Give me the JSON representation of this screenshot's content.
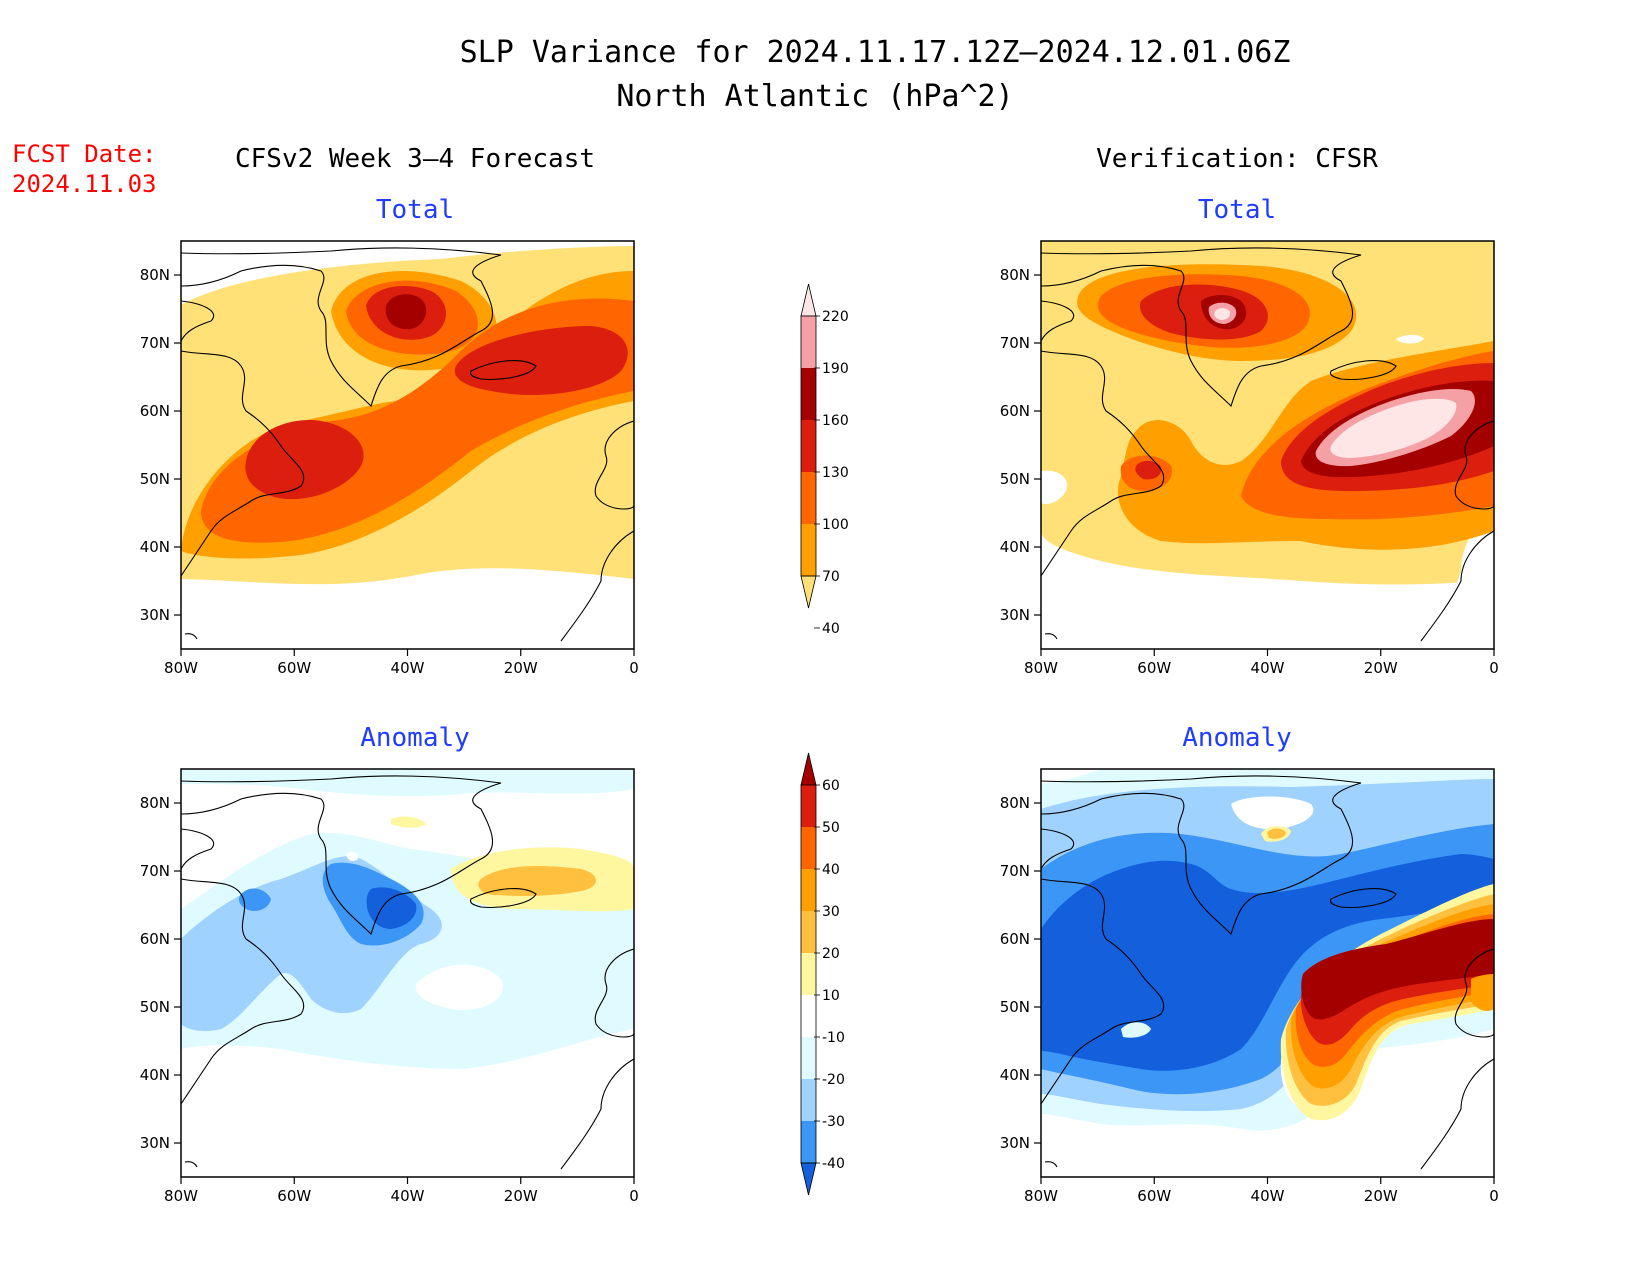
{
  "title": "SLP Variance for 2024.11.17.12Z–2024.12.01.06Z",
  "subtitle": "North Atlantic (hPa^2)",
  "forecast_date_label": "FCST Date:",
  "forecast_date_value": "2024.11.03",
  "columns": [
    {
      "header": "CFSv2 Week 3–4 Forecast"
    },
    {
      "header": "Verification: CFSR"
    }
  ],
  "panels": [
    {
      "title": "Total"
    },
    {
      "title": "Total"
    },
    {
      "title": "Anomaly"
    },
    {
      "title": "Anomaly"
    }
  ],
  "axes": {
    "lon_ticks": [
      "80W",
      "60W",
      "40W",
      "20W",
      "0"
    ],
    "lat_ticks": [
      "80N",
      "70N",
      "60N",
      "50N",
      "40N",
      "30N"
    ],
    "lon_range": [
      -80,
      0
    ],
    "lat_range": [
      25,
      85
    ]
  },
  "colorbars": {
    "total": {
      "levels": [
        "220",
        "190",
        "160",
        "130",
        "100",
        "70",
        "40"
      ],
      "colors": [
        "#ffe6e6",
        "#f5a0a5",
        "#a50000",
        "#dc1e0f",
        "#ff6600",
        "#ffa000",
        "#ffe177"
      ]
    },
    "anomaly": {
      "levels": [
        "60",
        "50",
        "40",
        "30",
        "20",
        "10",
        "-10",
        "-20",
        "-30",
        "-40"
      ],
      "colors": [
        "#a50000",
        "#dc1e0f",
        "#ff6600",
        "#ffa000",
        "#ffc040",
        "#fff7a0",
        "#ffffff",
        "#e0fbff",
        "#9fd2ff",
        "#3c96f5",
        "#1460dc"
      ]
    }
  },
  "chart_data": [
    {
      "panel": "CFSv2 Week 3–4 Forecast – Total",
      "type": "heatmap",
      "features": [
        {
          "label": "max near Greenland",
          "lon": -40,
          "lat": 72,
          "value": 160
        },
        {
          "label": "max near Iceland",
          "lon": -10,
          "lat": 67,
          "value": 130
        },
        {
          "label": "max near Newfoundland",
          "lon": -55,
          "lat": 50,
          "value": 130
        }
      ]
    },
    {
      "panel": "Verification: CFSR – Total",
      "type": "heatmap",
      "features": [
        {
          "label": "max near Greenland",
          "lon": -43,
          "lat": 73,
          "value": 190
        },
        {
          "label": "max west of British Isles",
          "lon": -20,
          "lat": 56,
          "value": 220
        },
        {
          "label": "local max near Newfoundland",
          "lon": -60,
          "lat": 48,
          "value": 130
        }
      ]
    },
    {
      "panel": "CFSv2 Week 3–4 Forecast – Anomaly",
      "type": "heatmap",
      "features": [
        {
          "label": "negative near Labrador Sea",
          "lon": -40,
          "lat": 58,
          "value": -40
        },
        {
          "label": "positive near Iceland",
          "lon": -12,
          "lat": 67,
          "value": 20
        }
      ]
    },
    {
      "panel": "Verification: CFSR – Anomaly",
      "type": "heatmap",
      "features": [
        {
          "label": "negative over Labrador/Greenland",
          "lon": -50,
          "lat": 60,
          "value": -40
        },
        {
          "label": "positive west of British Isles",
          "lon": -15,
          "lat": 55,
          "value": 60
        },
        {
          "label": "small positive south of Greenland",
          "lon": -40,
          "lat": 72,
          "value": 20
        }
      ]
    }
  ]
}
